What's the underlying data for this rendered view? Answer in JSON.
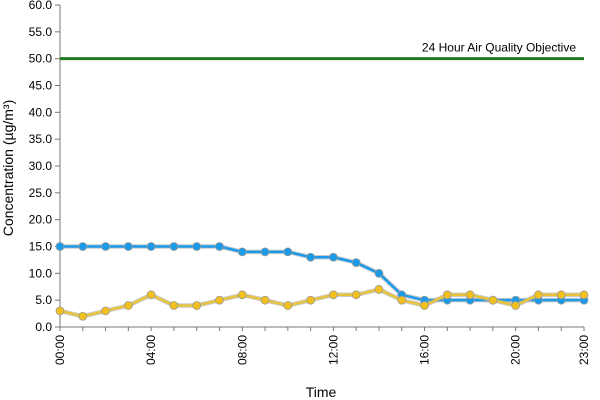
{
  "chart_data": {
    "type": "line",
    "xlabel": "Time",
    "ylabel": "Concentration (µg/m³)",
    "ylim": [
      0,
      60
    ],
    "ytick_step": 5,
    "x_tick_labels": [
      "00:00",
      "04:00",
      "08:00",
      "12:00",
      "16:00",
      "20:00",
      "23:00"
    ],
    "x": [
      0,
      1,
      2,
      3,
      4,
      5,
      6,
      7,
      8,
      9,
      10,
      11,
      12,
      13,
      14,
      15,
      16,
      17,
      18,
      19,
      20,
      21,
      22,
      23
    ],
    "grid": false,
    "legend": "none",
    "series": [
      {
        "color": "#1a9ae8",
        "marker_color": "#1a9ae8",
        "values": [
          15,
          15,
          15,
          15,
          15,
          15,
          15,
          15,
          14,
          14,
          14,
          13,
          13,
          12,
          10,
          6,
          5,
          5,
          5,
          5,
          5,
          5,
          5,
          5
        ]
      },
      {
        "color": "#e8c43a",
        "marker_color": "#f2c01e",
        "values": [
          3,
          2,
          3,
          4,
          6,
          4,
          4,
          5,
          6,
          5,
          4,
          5,
          6,
          6,
          7,
          5,
          4,
          6,
          6,
          5,
          4,
          6,
          6,
          6
        ]
      }
    ],
    "objective": {
      "value": 50,
      "label": "24 Hour Air Quality Objective",
      "color": "#1f7a1f"
    }
  }
}
